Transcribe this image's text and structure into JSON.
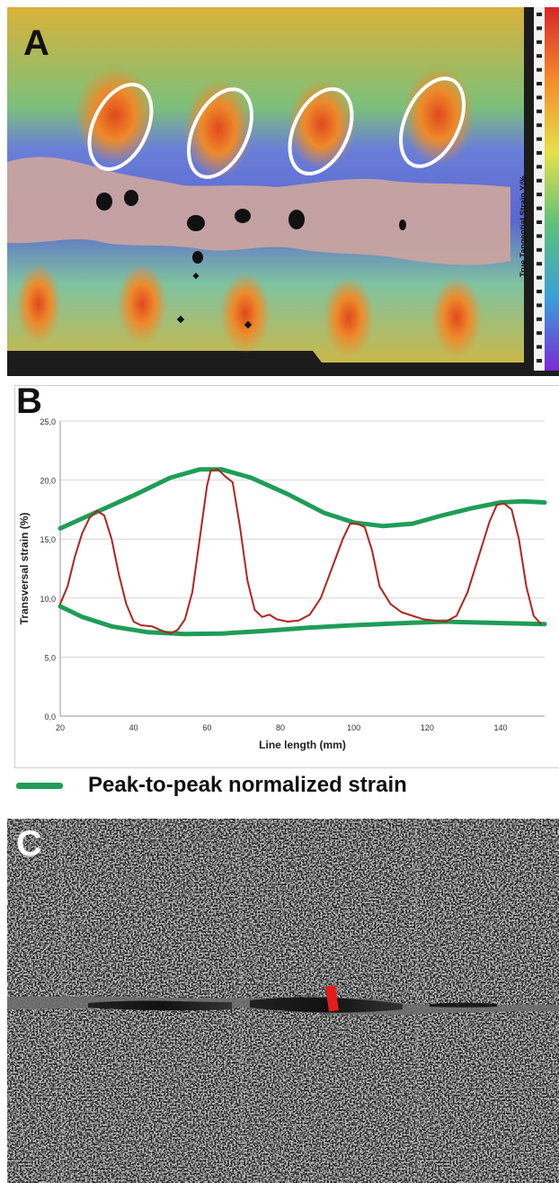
{
  "panels": {
    "a": {
      "letter": "A",
      "colorbar_title": "True Tangential Strain Y/%"
    },
    "b": {
      "letter": "B"
    },
    "c": {
      "letter": "C"
    }
  },
  "legend": {
    "label": "Peak-to-peak normalized strain",
    "color": "#1f9d57"
  },
  "colors": {
    "strain_line": "#b5231e",
    "envelope": "#1f9d57",
    "weld": "#c9a3a0"
  },
  "chart_data": {
    "type": "line",
    "xlabel": "Line length (mm)",
    "ylabel": "Transversal strain (%)",
    "xlim": [
      20,
      152
    ],
    "ylim": [
      0,
      25
    ],
    "x_ticks": [
      "20",
      "40",
      "60",
      "80",
      "100",
      "120",
      "140"
    ],
    "y_ticks": [
      "0,0",
      "5,0",
      "10,0",
      "15,0",
      "20,0",
      "25,0"
    ],
    "grid": "horizontal",
    "series": [
      {
        "style": "thin-red",
        "points": [
          [
            20,
            9.5
          ],
          [
            22,
            11
          ],
          [
            24,
            13.5
          ],
          [
            26,
            15.5
          ],
          [
            28,
            16.8
          ],
          [
            30,
            17.4
          ],
          [
            32,
            17.0
          ],
          [
            34,
            15
          ],
          [
            36,
            12
          ],
          [
            38,
            9.5
          ],
          [
            40,
            8.0
          ],
          [
            42,
            7.7
          ],
          [
            45,
            7.6
          ],
          [
            48,
            7.2
          ],
          [
            50,
            7.0
          ],
          [
            52,
            7.3
          ],
          [
            54,
            8.2
          ],
          [
            56,
            10.5
          ],
          [
            58,
            15
          ],
          [
            60,
            19.5
          ],
          [
            61,
            20.8
          ],
          [
            63,
            20.9
          ],
          [
            65,
            20.3
          ],
          [
            67,
            19.8
          ],
          [
            69,
            16
          ],
          [
            71,
            11.5
          ],
          [
            73,
            9.0
          ],
          [
            75,
            8.4
          ],
          [
            77,
            8.6
          ],
          [
            79,
            8.2
          ],
          [
            82,
            8.0
          ],
          [
            85,
            8.1
          ],
          [
            88,
            8.6
          ],
          [
            91,
            10
          ],
          [
            94,
            12.5
          ],
          [
            97,
            15
          ],
          [
            99,
            16.3
          ],
          [
            101,
            16.3
          ],
          [
            103,
            16.0
          ],
          [
            105,
            14
          ],
          [
            107,
            11
          ],
          [
            110,
            9.5
          ],
          [
            113,
            8.8
          ],
          [
            116,
            8.5
          ],
          [
            119,
            8.2
          ],
          [
            122,
            8.1
          ],
          [
            125,
            8.0
          ],
          [
            128,
            8.5
          ],
          [
            131,
            10.5
          ],
          [
            134,
            13.5
          ],
          [
            137,
            16.5
          ],
          [
            139,
            17.9
          ],
          [
            141,
            18.0
          ],
          [
            143,
            17.5
          ],
          [
            145,
            15
          ],
          [
            147,
            11
          ],
          [
            149,
            8.5
          ],
          [
            151,
            7.8
          ]
        ]
      },
      {
        "style": "thick-green",
        "points": [
          [
            20,
            15.9
          ],
          [
            30,
            17.3
          ],
          [
            40,
            18.7
          ],
          [
            50,
            20.2
          ],
          [
            58,
            20.9
          ],
          [
            64,
            20.9
          ],
          [
            72,
            20.2
          ],
          [
            82,
            18.8
          ],
          [
            92,
            17.2
          ],
          [
            100,
            16.4
          ],
          [
            108,
            16.1
          ],
          [
            116,
            16.3
          ],
          [
            124,
            17.0
          ],
          [
            132,
            17.6
          ],
          [
            140,
            18.1
          ],
          [
            146,
            18.2
          ],
          [
            152,
            18.1
          ]
        ]
      },
      {
        "style": "thick-green",
        "points": [
          [
            20,
            9.3
          ],
          [
            26,
            8.4
          ],
          [
            34,
            7.6
          ],
          [
            44,
            7.1
          ],
          [
            54,
            6.95
          ],
          [
            64,
            7.0
          ],
          [
            75,
            7.2
          ],
          [
            88,
            7.5
          ],
          [
            100,
            7.7
          ],
          [
            115,
            7.9
          ],
          [
            125,
            8.0
          ],
          [
            138,
            7.9
          ],
          [
            152,
            7.8
          ]
        ]
      }
    ]
  }
}
